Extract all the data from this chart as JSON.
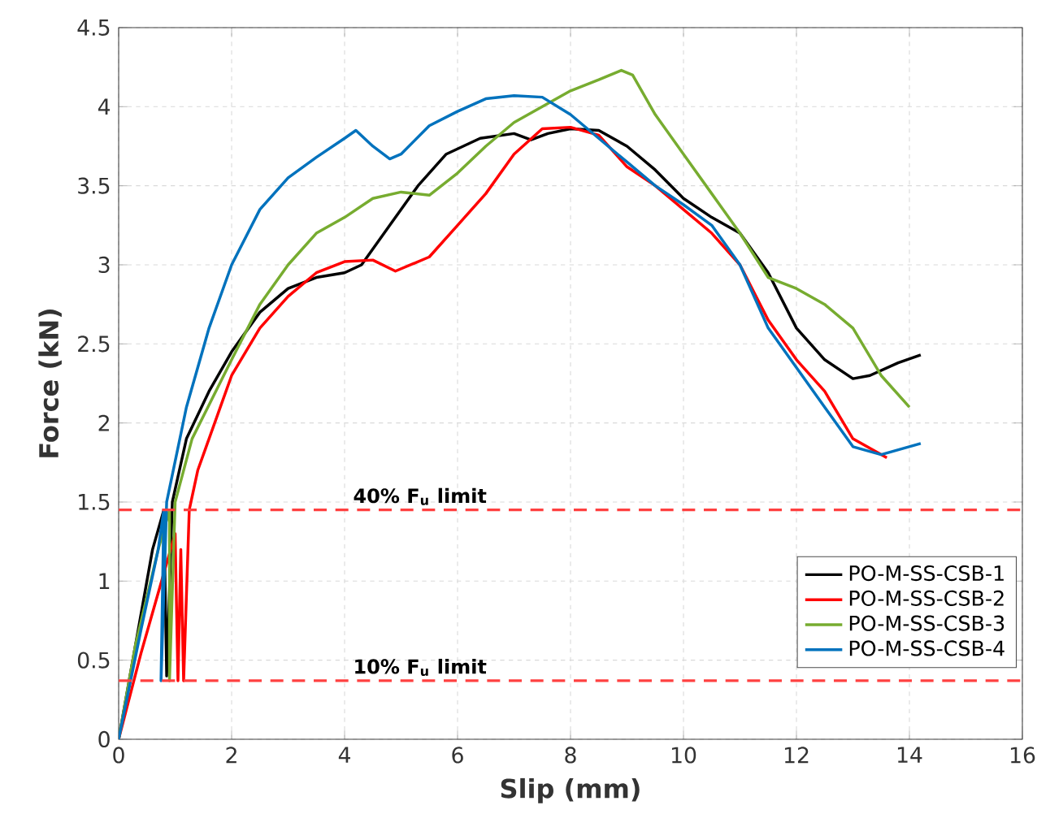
{
  "chart_data": {
    "type": "line",
    "xlabel": "Slip (mm)",
    "ylabel": "Force (kN)",
    "xlim": [
      0,
      16
    ],
    "ylim": [
      0,
      4.5
    ],
    "xticks": [
      0,
      2,
      4,
      6,
      8,
      10,
      12,
      14,
      16
    ],
    "yticks": [
      0,
      0.5,
      1,
      1.5,
      2,
      2.5,
      3,
      3.5,
      4,
      4.5
    ],
    "grid": true,
    "legend": "bottom right",
    "series": [
      {
        "name": "PO-M-SS-CSB-1",
        "color": "#000000",
        "x": [
          0,
          0.3,
          0.6,
          0.8,
          0.85,
          0.95,
          1.2,
          1.6,
          2,
          2.5,
          3,
          3.5,
          4,
          4.3,
          4.8,
          5.3,
          5.8,
          6.4,
          7,
          7.3,
          7.6,
          8,
          8.5,
          9,
          9.5,
          10,
          10.5,
          11,
          11.5,
          12,
          12.5,
          13,
          13.3,
          13.8,
          14.2
        ],
        "values": [
          0,
          0.6,
          1.2,
          1.45,
          0.4,
          1.5,
          1.9,
          2.2,
          2.45,
          2.7,
          2.85,
          2.92,
          2.95,
          3.0,
          3.25,
          3.5,
          3.7,
          3.8,
          3.83,
          3.79,
          3.83,
          3.86,
          3.85,
          3.75,
          3.6,
          3.42,
          3.3,
          3.2,
          2.95,
          2.6,
          2.4,
          2.28,
          2.3,
          2.38,
          2.43
        ]
      },
      {
        "name": "PO-M-SS-CSB-2",
        "color": "#ff0000",
        "x": [
          0,
          0.4,
          0.8,
          1.0,
          1.05,
          1.1,
          1.15,
          1.25,
          1.4,
          1.8,
          2,
          2.5,
          3,
          3.5,
          4,
          4.5,
          4.9,
          5.5,
          6,
          6.5,
          7,
          7.5,
          8,
          8.5,
          9,
          9.5,
          10,
          10.5,
          11,
          11.5,
          12,
          12.5,
          13,
          13.5,
          13.6
        ],
        "values": [
          0,
          0.55,
          1.05,
          1.3,
          0.37,
          1.2,
          0.37,
          1.45,
          1.7,
          2.1,
          2.3,
          2.6,
          2.8,
          2.95,
          3.02,
          3.03,
          2.96,
          3.05,
          3.25,
          3.45,
          3.7,
          3.86,
          3.87,
          3.82,
          3.62,
          3.5,
          3.35,
          3.2,
          3.0,
          2.65,
          2.4,
          2.2,
          1.9,
          1.8,
          1.78
        ]
      },
      {
        "name": "PO-M-SS-CSB-3",
        "color": "#77ac30",
        "x": [
          0,
          0.3,
          0.7,
          0.9,
          0.9,
          1.0,
          1.3,
          2,
          2.5,
          3,
          3.5,
          4,
          4.5,
          5,
          5.5,
          6,
          6.5,
          7,
          7.5,
          8,
          8.5,
          8.9,
          9.1,
          9.5,
          10,
          10.5,
          11,
          11.5,
          12,
          12.5,
          13,
          13.5,
          14
        ],
        "values": [
          0,
          0.6,
          1.2,
          1.45,
          0.37,
          1.5,
          1.9,
          2.4,
          2.75,
          3.0,
          3.2,
          3.3,
          3.42,
          3.46,
          3.44,
          3.58,
          3.75,
          3.9,
          4.0,
          4.1,
          4.17,
          4.23,
          4.2,
          3.95,
          3.7,
          3.45,
          3.2,
          2.92,
          2.85,
          2.75,
          2.6,
          2.3,
          2.1
        ]
      },
      {
        "name": "PO-M-SS-CSB-4",
        "color": "#0072bd",
        "x": [
          0,
          0.4,
          0.7,
          0.8,
          0.75,
          0.85,
          1.2,
          1.6,
          2,
          2.5,
          3,
          3.5,
          4,
          4.2,
          4.5,
          4.8,
          5,
          5.5,
          6,
          6.5,
          7,
          7.5,
          8,
          8.5,
          9,
          9.5,
          10,
          10.5,
          11,
          11.5,
          12,
          12.5,
          13,
          13.5,
          14.2
        ],
        "values": [
          0,
          0.7,
          1.2,
          1.45,
          0.37,
          1.5,
          2.1,
          2.6,
          3.0,
          3.35,
          3.55,
          3.68,
          3.8,
          3.85,
          3.75,
          3.67,
          3.7,
          3.88,
          3.97,
          4.05,
          4.07,
          4.06,
          3.95,
          3.8,
          3.65,
          3.5,
          3.38,
          3.25,
          3.0,
          2.6,
          2.35,
          2.1,
          1.85,
          1.8,
          1.87
        ]
      }
    ],
    "ref_lines": [
      {
        "axis": "y",
        "value": 1.45,
        "label": "40% F$_{u}$ limit",
        "color": "#ff4040",
        "line_style": "dashed"
      },
      {
        "axis": "y",
        "value": 0.37,
        "label": "10% F$_{u}$ limit",
        "color": "#ff4040",
        "line_style": "dashed"
      }
    ]
  }
}
